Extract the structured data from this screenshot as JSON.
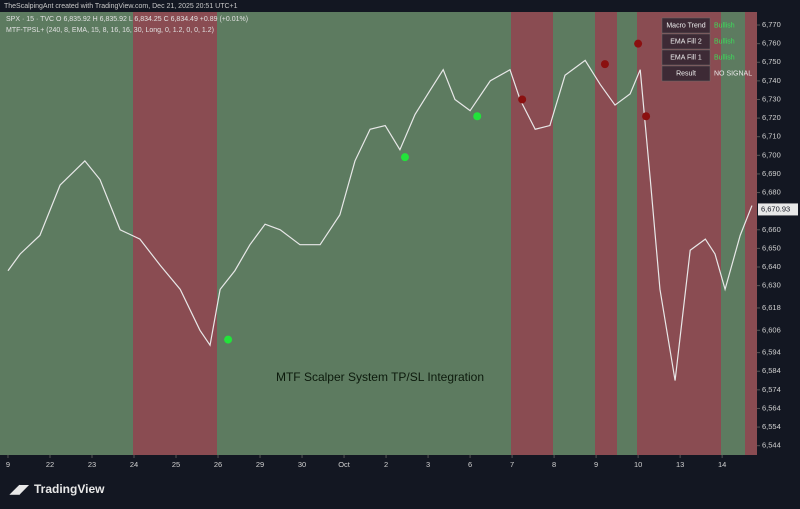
{
  "chart_data": {
    "type": "line",
    "header": "TheScalpingAnt created with TradingView.com, Dec 21, 2025 20:51 UTC+1",
    "symbol_line": "SPX · 15 · TVC  O 6,835.92  H 6,835.92  L 6,834.25  C 6,834.49  +0.89 (+0.01%)",
    "indicator_line": "MTF-TPSL+ (240, 8, EMA, 15, 8, 16, 16, 30, Long, 0, 1.2, 0, 0, 1.2)",
    "annotation": "MTF Scalper System TP/SL Integration",
    "table": [
      [
        "Macro Trend",
        "Bullish"
      ],
      [
        "EMA Fill 2",
        "Bullish"
      ],
      [
        "EMA Fill 1",
        "Bullish"
      ],
      [
        "Result",
        "NO SIGNAL"
      ]
    ],
    "brand": "TradingView",
    "last_price": {
      "value": 6670.93,
      "label": "6,670.93"
    },
    "x": [
      0,
      0.29,
      0.76,
      1.24,
      1.83,
      2.19,
      2.67,
      3.14,
      3.62,
      4.1,
      4.57,
      4.81,
      5.05,
      5.4,
      5.76,
      6.12,
      6.48,
      6.95,
      7.43,
      7.9,
      8.26,
      8.62,
      8.98,
      9.33,
      9.69,
      10.05,
      10.36,
      10.64,
      11.0,
      11.48,
      11.95,
      12.19,
      12.55,
      12.9,
      13.26,
      13.74,
      14.1,
      14.45,
      14.81,
      15.05,
      15.29,
      15.52,
      15.88,
      16.24,
      16.6,
      16.83,
      17.07,
      17.43,
      17.71
    ],
    "series": [
      {
        "color": "#e8e8e8",
        "values": [
          6638,
          6647,
          6657,
          6684,
          6697,
          6687,
          6660,
          6655,
          6641,
          6628,
          6606,
          6598,
          6628,
          6638,
          6652,
          6663,
          6660,
          6652,
          6652,
          6668,
          6697,
          6714,
          6716,
          6703,
          6722,
          6735,
          6746,
          6730,
          6724,
          6740,
          6746,
          6730,
          6714,
          6716,
          6743,
          6751,
          6738,
          6727,
          6733,
          6746,
          6687,
          6628,
          6579,
          6649,
          6655,
          6647,
          6628,
          6657,
          6673
        ]
      }
    ],
    "long_signals": {
      "color": "#22e33a",
      "x": [
        5.24,
        9.45,
        11.17
      ],
      "values": [
        6601,
        6699,
        6721
      ]
    },
    "short_signals": {
      "color": "#8b1010",
      "x": [
        12.24,
        14.21,
        15.19,
        15.0
      ],
      "values": [
        6730,
        6749,
        6721,
        6760
      ]
    },
    "xlim": [
      -0.19,
      17.83
    ],
    "xticks": [
      {
        "value": 0,
        "label": "9"
      },
      {
        "value": 1,
        "label": "22"
      },
      {
        "value": 2,
        "label": "23"
      },
      {
        "value": 3,
        "label": "24"
      },
      {
        "value": 4,
        "label": "25"
      },
      {
        "value": 5,
        "label": "26"
      },
      {
        "value": 6,
        "label": "29"
      },
      {
        "value": 7,
        "label": "30"
      },
      {
        "value": 8,
        "label": "Oct"
      },
      {
        "value": 9,
        "label": "2"
      },
      {
        "value": 10,
        "label": "3"
      },
      {
        "value": 11,
        "label": "6"
      },
      {
        "value": 12,
        "label": "7"
      },
      {
        "value": 13,
        "label": "8"
      },
      {
        "value": 14,
        "label": "9"
      },
      {
        "value": 15,
        "label": "10"
      },
      {
        "value": 16,
        "label": "13"
      },
      {
        "value": 17,
        "label": "14"
      }
    ],
    "ylim": [
      6539,
      6777
    ],
    "yticks": [
      {
        "value": 6770,
        "label": "6,770"
      },
      {
        "value": 6760,
        "label": "6,760"
      },
      {
        "value": 6750,
        "label": "6,750"
      },
      {
        "value": 6740,
        "label": "6,740"
      },
      {
        "value": 6730,
        "label": "6,730"
      },
      {
        "value": 6720,
        "label": "6,720"
      },
      {
        "value": 6710,
        "label": "6,710"
      },
      {
        "value": 6700,
        "label": "6,700"
      },
      {
        "value": 6690,
        "label": "6,690"
      },
      {
        "value": 6680,
        "label": "6,680"
      },
      {
        "value": 6660,
        "label": "6,660"
      },
      {
        "value": 6650,
        "label": "6,650"
      },
      {
        "value": 6640,
        "label": "6,640"
      },
      {
        "value": 6630,
        "label": "6,630"
      },
      {
        "value": 6618,
        "label": "6,618"
      },
      {
        "value": 6606,
        "label": "6,606"
      },
      {
        "value": 6594,
        "label": "6,594"
      },
      {
        "value": 6584,
        "label": "6,584"
      },
      {
        "value": 6574,
        "label": "6,574"
      },
      {
        "value": 6564,
        "label": "6,564"
      },
      {
        "value": 6554,
        "label": "6,554"
      },
      {
        "value": 6544,
        "label": "6,544"
      }
    ]
  }
}
